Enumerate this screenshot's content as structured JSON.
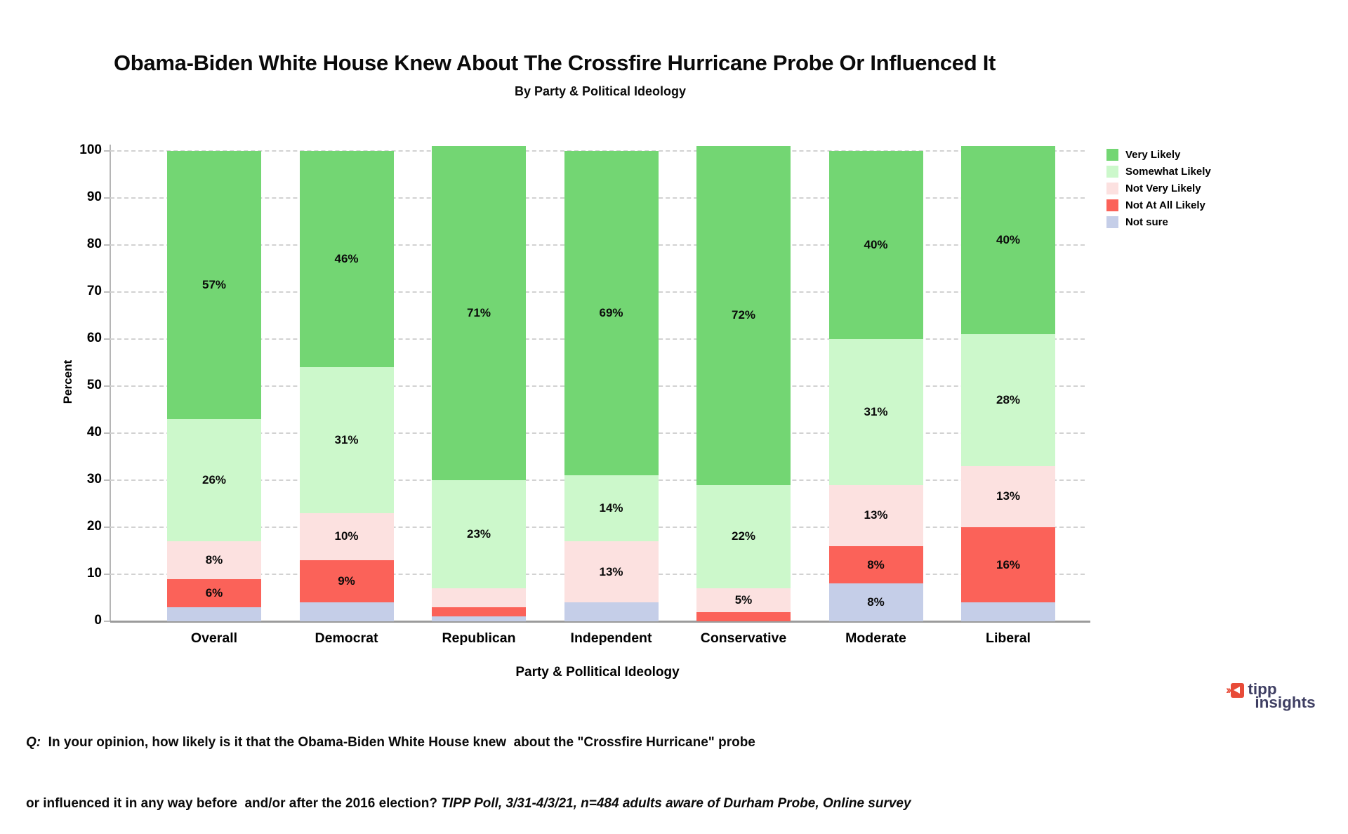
{
  "chart_data": {
    "type": "bar",
    "variant": "stacked-vertical",
    "title": "Obama-Biden White House Knew About The Crossfire Hurricane Probe Or Influenced It",
    "subtitle": "By Party & Political Ideology",
    "xlabel": "Party & Pollitical Ideology",
    "ylabel": "Percent",
    "ylim": [
      0,
      100
    ],
    "yticks": [
      0,
      10,
      20,
      30,
      40,
      50,
      60,
      70,
      80,
      90,
      100
    ],
    "grid": "horizontal-dashed",
    "legend_position": "top-right",
    "bar_label_min_value": 5,
    "categories": [
      "Overall",
      "Democrat",
      "Republican",
      "Independent",
      "Conservative",
      "Moderate",
      "Liberal"
    ],
    "series_order_bottom_to_top": [
      "Not sure",
      "Not At All Likely",
      "Not Very Likely",
      "Somewhat Likely",
      "Very Likely"
    ],
    "legend_order_top_to_bottom": [
      "Very Likely",
      "Somewhat Likely",
      "Not Very Likely",
      "Not At All Likely",
      "Not sure"
    ],
    "colors": {
      "Very Likely": "#73d673",
      "Somewhat Likely": "#ccf8cb",
      "Not Very Likely": "#fce1e0",
      "Not At All Likely": "#fb6259",
      "Not sure": "#c5cee8"
    },
    "series": [
      {
        "name": "Very Likely",
        "values": [
          57,
          46,
          71,
          69,
          72,
          40,
          40
        ]
      },
      {
        "name": "Somewhat Likely",
        "values": [
          26,
          31,
          23,
          14,
          22,
          31,
          28
        ]
      },
      {
        "name": "Not Very Likely",
        "values": [
          8,
          10,
          4,
          13,
          5,
          13,
          13
        ]
      },
      {
        "name": "Not At All Likely",
        "values": [
          6,
          9,
          2,
          0,
          2,
          8,
          16
        ]
      },
      {
        "name": "Not sure",
        "values": [
          3,
          4,
          1,
          4,
          0,
          8,
          4
        ]
      }
    ]
  },
  "footer": {
    "q_label": "Q:",
    "line1_rest": "  In your opinion, how likely is it that the Obama-Biden White House knew  about the \"Crossfire Hurricane\" probe",
    "line2_main": "or influenced it in any way before  and/or after the 2016 election? ",
    "line2_source": "TIPP Poll, 3/31-4/3/21, n=484 adults aware of Durham Probe, Online survey"
  },
  "brand": {
    "name": "tipp insights",
    "line1": "tipp",
    "line2": "insights",
    "text_color": "#3f3f63",
    "accent_color": "#e84b38"
  }
}
